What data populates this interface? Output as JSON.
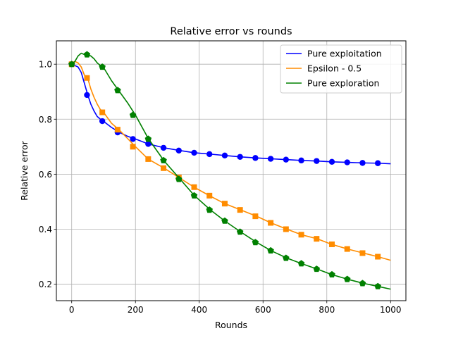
{
  "chart_data": {
    "type": "line",
    "title": "Relative error vs rounds",
    "xlabel": "Rounds",
    "ylabel": "Relative error",
    "xlim": [
      -48,
      1048
    ],
    "ylim": [
      0.14,
      1.085
    ],
    "xticks": [
      0,
      200,
      400,
      600,
      800,
      1000
    ],
    "yticks": [
      0.2,
      0.4,
      0.6,
      0.8,
      1.0
    ],
    "xtick_labels": [
      "0",
      "200",
      "400",
      "600",
      "800",
      "1000"
    ],
    "ytick_labels": [
      "0.2",
      "0.4",
      "0.6",
      "0.8",
      "1.0"
    ],
    "grid": true,
    "legend_position": "top-right",
    "series": [
      {
        "name": "Pure exploitation",
        "color": "#0000ff",
        "marker": "circle",
        "line_x": [
          0,
          10,
          20,
          30,
          40,
          50,
          60,
          70,
          80,
          90,
          100,
          125,
          150,
          175,
          200,
          240,
          290,
          340,
          385,
          435,
          480,
          530,
          580,
          625,
          675,
          720,
          770,
          815,
          865,
          915,
          960,
          1000
        ],
        "line_y": [
          1.0,
          0.995,
          0.99,
          0.97,
          0.93,
          0.89,
          0.855,
          0.83,
          0.81,
          0.8,
          0.792,
          0.77,
          0.752,
          0.738,
          0.728,
          0.71,
          0.696,
          0.686,
          0.678,
          0.673,
          0.668,
          0.663,
          0.659,
          0.656,
          0.653,
          0.65,
          0.648,
          0.645,
          0.643,
          0.641,
          0.64,
          0.638
        ],
        "marker_x": [
          0,
          48,
          96,
          144,
          192,
          240,
          288,
          336,
          384,
          432,
          480,
          528,
          576,
          624,
          672,
          720,
          768,
          816,
          864,
          912,
          960
        ],
        "marker_y": [
          1.0,
          0.888,
          0.793,
          0.752,
          0.728,
          0.71,
          0.696,
          0.686,
          0.678,
          0.673,
          0.668,
          0.663,
          0.659,
          0.656,
          0.653,
          0.65,
          0.648,
          0.645,
          0.643,
          0.641,
          0.64
        ]
      },
      {
        "name": "Epsilon - 0.5",
        "color": "#ff8c00",
        "marker": "square",
        "line_x": [
          0,
          10,
          20,
          30,
          40,
          50,
          60,
          70,
          80,
          90,
          100,
          125,
          150,
          175,
          200,
          240,
          290,
          340,
          385,
          435,
          480,
          530,
          580,
          625,
          675,
          720,
          770,
          815,
          865,
          915,
          960,
          1000
        ],
        "line_y": [
          1.0,
          1.01,
          1.005,
          0.99,
          0.96,
          0.95,
          0.91,
          0.88,
          0.855,
          0.835,
          0.825,
          0.785,
          0.76,
          0.73,
          0.7,
          0.655,
          0.622,
          0.585,
          0.552,
          0.52,
          0.493,
          0.47,
          0.447,
          0.423,
          0.4,
          0.38,
          0.365,
          0.345,
          0.328,
          0.313,
          0.3,
          0.287
        ],
        "marker_x": [
          0,
          48,
          96,
          144,
          192,
          240,
          288,
          336,
          384,
          432,
          480,
          528,
          576,
          624,
          672,
          720,
          768,
          816,
          864,
          912,
          960
        ],
        "marker_y": [
          1.0,
          0.95,
          0.825,
          0.762,
          0.7,
          0.655,
          0.622,
          0.588,
          0.553,
          0.522,
          0.493,
          0.47,
          0.447,
          0.423,
          0.4,
          0.38,
          0.365,
          0.345,
          0.328,
          0.313,
          0.3
        ]
      },
      {
        "name": "Pure exploration",
        "color": "#008000",
        "marker": "pentagon",
        "line_x": [
          0,
          10,
          20,
          30,
          40,
          50,
          60,
          70,
          80,
          90,
          100,
          125,
          150,
          175,
          200,
          240,
          290,
          340,
          385,
          435,
          480,
          530,
          580,
          625,
          675,
          720,
          770,
          815,
          865,
          915,
          960,
          1000
        ],
        "line_y": [
          1.0,
          1.01,
          1.03,
          1.04,
          1.035,
          1.035,
          1.03,
          1.02,
          1.005,
          0.995,
          0.988,
          0.94,
          0.9,
          0.86,
          0.815,
          0.73,
          0.648,
          0.582,
          0.522,
          0.47,
          0.43,
          0.39,
          0.352,
          0.322,
          0.295,
          0.275,
          0.255,
          0.235,
          0.218,
          0.203,
          0.192,
          0.182
        ],
        "marker_x": [
          0,
          48,
          96,
          144,
          192,
          240,
          288,
          336,
          384,
          432,
          480,
          528,
          576,
          624,
          672,
          720,
          768,
          816,
          864,
          912,
          960
        ],
        "marker_y": [
          1.0,
          1.035,
          0.99,
          0.905,
          0.815,
          0.728,
          0.65,
          0.582,
          0.522,
          0.47,
          0.43,
          0.39,
          0.352,
          0.322,
          0.295,
          0.275,
          0.255,
          0.235,
          0.218,
          0.203,
          0.192
        ]
      }
    ]
  }
}
